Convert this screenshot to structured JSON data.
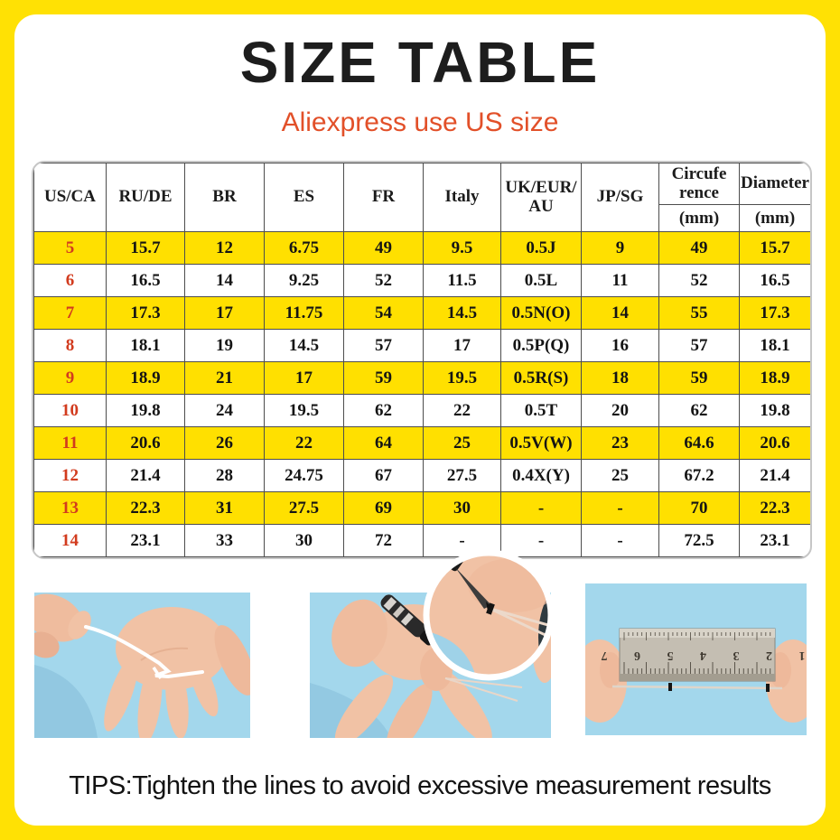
{
  "title": "SIZE TABLE",
  "subtitle": "Aliexpress use US size",
  "tips": "TIPS:Tighten the lines to avoid excessive measurement results",
  "colors": {
    "frame_yellow": "#ffe104",
    "highlight_row_yellow": "#ffe000",
    "us_size_red": "#d23b1e",
    "subtitle_red": "#e25029",
    "photo_background_blue": "#a7d8ec"
  },
  "table": {
    "columns": [
      {
        "lines": [
          "US/CA"
        ]
      },
      {
        "lines": [
          "RU/DE"
        ]
      },
      {
        "lines": [
          "BR"
        ]
      },
      {
        "lines": [
          "ES"
        ]
      },
      {
        "lines": [
          "FR"
        ]
      },
      {
        "lines": [
          "Italy"
        ]
      },
      {
        "lines": [
          "UK/EUR/",
          "AU"
        ]
      },
      {
        "lines": [
          "JP/SG"
        ]
      },
      {
        "lines": [
          "Circufe",
          "rence"
        ],
        "sub": "(mm)"
      },
      {
        "lines": [
          "Diameter"
        ],
        "sub": "(mm)"
      }
    ],
    "rows": [
      {
        "highlighted": true,
        "cells": [
          "5",
          "15.7",
          "12",
          "6.75",
          "49",
          "9.5",
          "0.5J",
          "9",
          "49",
          "15.7"
        ]
      },
      {
        "highlighted": false,
        "cells": [
          "6",
          "16.5",
          "14",
          "9.25",
          "52",
          "11.5",
          "0.5L",
          "11",
          "52",
          "16.5"
        ]
      },
      {
        "highlighted": true,
        "cells": [
          "7",
          "17.3",
          "17",
          "11.75",
          "54",
          "14.5",
          "0.5N(O)",
          "14",
          "55",
          "17.3"
        ]
      },
      {
        "highlighted": false,
        "cells": [
          "8",
          "18.1",
          "19",
          "14.5",
          "57",
          "17",
          "0.5P(Q)",
          "16",
          "57",
          "18.1"
        ]
      },
      {
        "highlighted": true,
        "cells": [
          "9",
          "18.9",
          "21",
          "17",
          "59",
          "19.5",
          "0.5R(S)",
          "18",
          "59",
          "18.9"
        ]
      },
      {
        "highlighted": false,
        "cells": [
          "10",
          "19.8",
          "24",
          "19.5",
          "62",
          "22",
          "0.5T",
          "20",
          "62",
          "19.8"
        ]
      },
      {
        "highlighted": true,
        "cells": [
          "11",
          "20.6",
          "26",
          "22",
          "64",
          "25",
          "0.5V(W)",
          "23",
          "64.6",
          "20.6"
        ]
      },
      {
        "highlighted": false,
        "cells": [
          "12",
          "21.4",
          "28",
          "24.75",
          "67",
          "27.5",
          "0.4X(Y)",
          "25",
          "67.2",
          "21.4"
        ]
      },
      {
        "highlighted": true,
        "cells": [
          "13",
          "22.3",
          "31",
          "27.5",
          "69",
          "30",
          "-",
          "-",
          "70",
          "22.3"
        ]
      },
      {
        "highlighted": false,
        "cells": [
          "14",
          "23.1",
          "33",
          "30",
          "72",
          "-",
          "-",
          "-",
          "72.5",
          "23.1"
        ]
      }
    ]
  },
  "photos": {
    "ruler_numbers": "1 2 3 4 5 6 7"
  }
}
